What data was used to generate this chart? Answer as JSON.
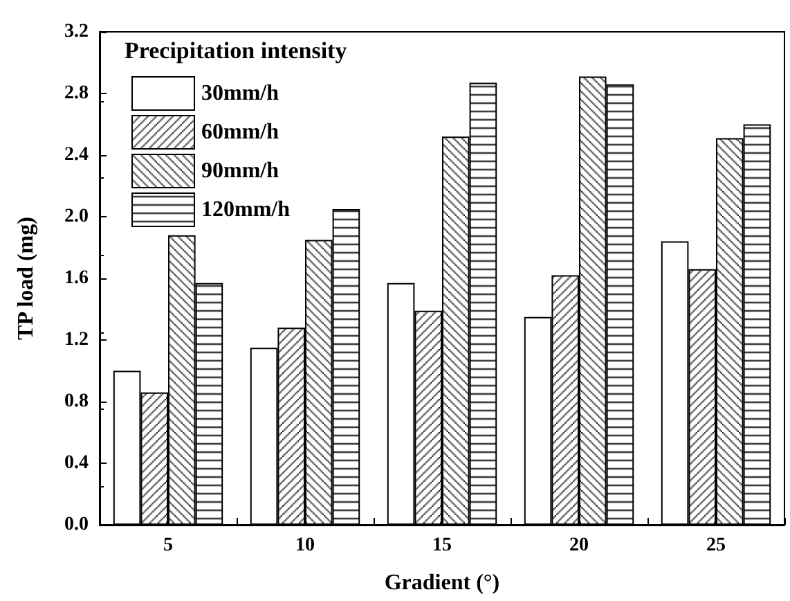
{
  "chart_data": {
    "type": "bar",
    "xlabel": "Gradient (°)",
    "ylabel": "TP load (mg)",
    "legend_title": "Precipitation intensity",
    "categories": [
      "5",
      "10",
      "15",
      "20",
      "25"
    ],
    "series": [
      {
        "name": "30mm/h",
        "color": "#ffffff",
        "values": [
          1.0,
          1.15,
          1.57,
          1.35,
          1.84
        ]
      },
      {
        "name": "60mm/h",
        "color": "#000000",
        "values": [
          0.86,
          1.28,
          1.39,
          1.62,
          1.66
        ]
      },
      {
        "name": "90mm/h",
        "color": "#000000",
        "values": [
          1.88,
          1.85,
          2.52,
          2.91,
          2.51
        ]
      },
      {
        "name": "120mm/h",
        "color": "#000000",
        "values": [
          1.57,
          2.05,
          2.87,
          2.86,
          2.6
        ]
      }
    ],
    "ylim": [
      0,
      3.2
    ],
    "yticks": [
      {
        "value": 0,
        "label": "0.0"
      },
      0.4,
      0.8,
      1.2,
      1.6,
      {
        "value": 2,
        "label": "2.0"
      },
      2.4,
      2.8,
      3.2
    ],
    "grid": false,
    "legend": "top left"
  }
}
